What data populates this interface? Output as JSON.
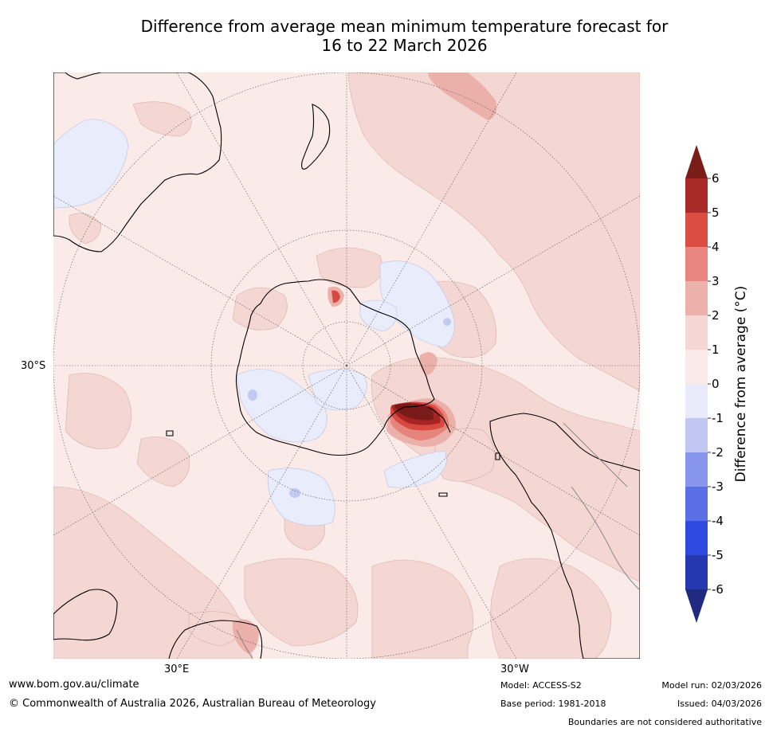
{
  "title": {
    "line1": "Difference from average mean minimum temperature forecast for",
    "line2": "16 to 22 March 2026"
  },
  "map": {
    "projection": "south polar stereographic",
    "lat_label": "30°S",
    "lon_labels": [
      "30°E",
      "30°W"
    ],
    "colors": {
      "ocean_base": "#fbebe8",
      "warm_1": "#f4d6d2",
      "warm_2": "#ecb0ab",
      "warm_3": "#e6847c",
      "warm_4": "#d84a3f",
      "warm_5": "#a82424",
      "warm_6": "#7a1a18",
      "cool_1": "#e8ecfb",
      "cool_2": "#c2c9f2",
      "coast": "#000000",
      "border": "#888888"
    }
  },
  "colorbar": {
    "label": "Difference from average (°C)",
    "ticks": [
      "6",
      "5",
      "4",
      "3",
      "2",
      "1",
      "0",
      "-1",
      "-2",
      "-3",
      "-4",
      "-5",
      "-6"
    ],
    "colors": [
      "#a92a26",
      "#db4c42",
      "#e8857f",
      "#edb1ab",
      "#f5d6d2",
      "#fbebe8",
      "#e9ebfb",
      "#c0c7f2",
      "#8796ec",
      "#5a6fe6",
      "#2e4ae0",
      "#2538b0"
    ],
    "over_color": "#7a1c18",
    "under_color": "#1f2a80"
  },
  "footer": {
    "website": "www.bom.gov.au/climate",
    "copyright": "© Commonwealth of Australia 2026, Australian Bureau of Meteorology",
    "model": "Model: ACCESS-S2",
    "base_period": "Base period: 1981-2018",
    "model_run": "Model run: 02/03/2026",
    "issued": "Issued: 04/03/2026",
    "disclaimer": "Boundaries are not considered authoritative"
  }
}
